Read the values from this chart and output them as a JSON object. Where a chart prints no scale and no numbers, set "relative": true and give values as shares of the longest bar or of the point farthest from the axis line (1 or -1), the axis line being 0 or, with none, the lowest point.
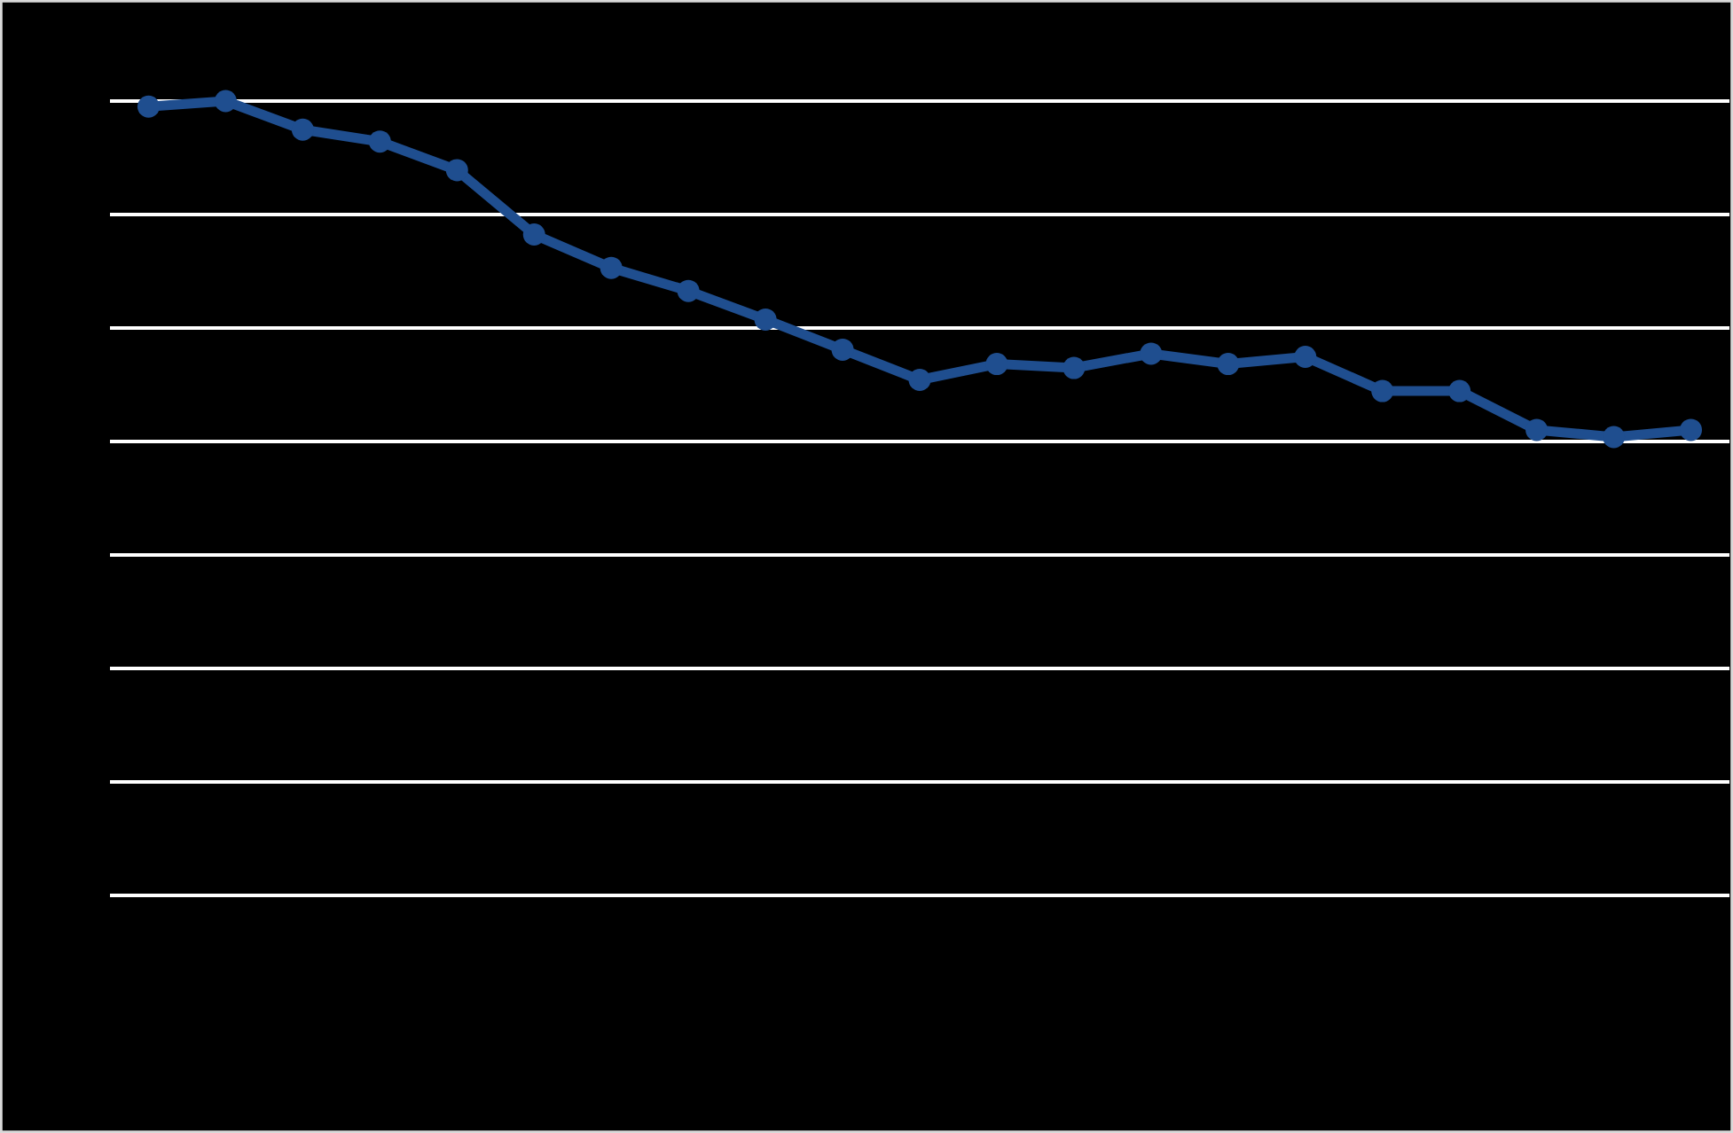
{
  "chart_data": {
    "type": "line",
    "relative": true,
    "categories": [
      null,
      null,
      null,
      null,
      null,
      null,
      null,
      null,
      null,
      null,
      null,
      null,
      null,
      null,
      null,
      null,
      null,
      null,
      null,
      null,
      null
    ],
    "series": [
      {
        "color": "#1f4e8f",
        "values": [
          0.993,
          1,
          0.964,
          0.949,
          0.913,
          0.832,
          0.79,
          0.761,
          0.725,
          0.687,
          0.649,
          0.669,
          0.664,
          0.682,
          0.669,
          0.678,
          0.635,
          0.635,
          0.586,
          0.577,
          0.586
        ]
      }
    ],
    "grid": "y",
    "marker": "circle",
    "line_style": "solid"
  }
}
